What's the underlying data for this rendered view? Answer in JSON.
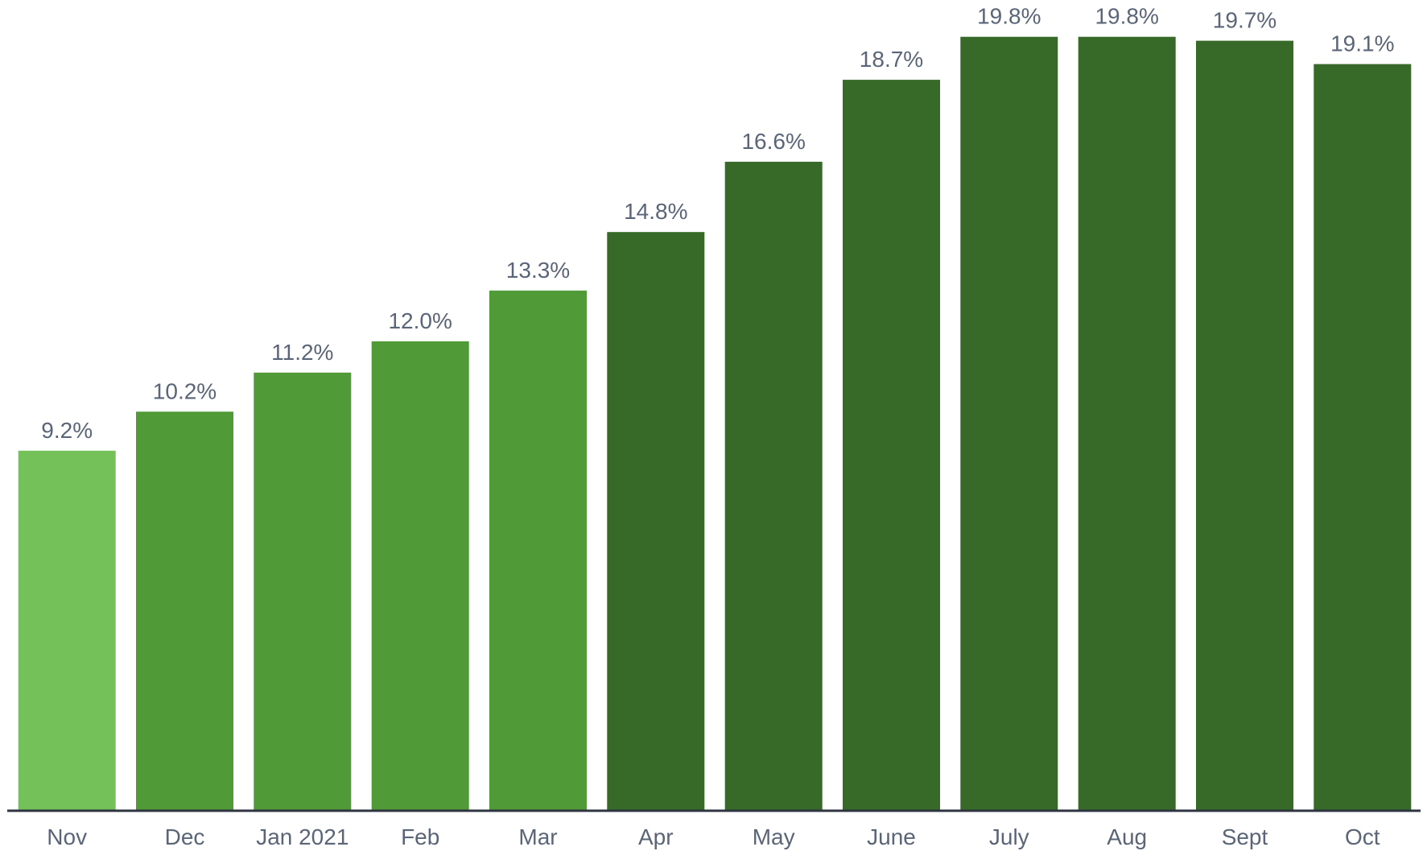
{
  "chart_data": {
    "type": "bar",
    "title": "",
    "xlabel": "",
    "ylabel": "",
    "categories": [
      "Nov",
      "Dec",
      "Jan 2021",
      "Feb",
      "Mar",
      "Apr",
      "May",
      "June",
      "July",
      "Aug",
      "Sept",
      "Oct"
    ],
    "values": [
      9.2,
      10.2,
      11.2,
      12.0,
      13.3,
      14.8,
      16.6,
      18.7,
      19.8,
      19.8,
      19.7,
      19.1
    ],
    "value_labels": [
      "9.2%",
      "10.2%",
      "11.2%",
      "12.0%",
      "13.3%",
      "14.8%",
      "16.6%",
      "18.7%",
      "19.8%",
      "19.8%",
      "19.7%",
      "19.1%"
    ],
    "bar_colors": [
      "#74c15a",
      "#519a38",
      "#519a38",
      "#519a38",
      "#519a38",
      "#376a28",
      "#376a28",
      "#376a28",
      "#376a28",
      "#376a28",
      "#376a28",
      "#376a28"
    ],
    "ylim": [
      0,
      20
    ],
    "grid": false,
    "legend": "none",
    "colors": {
      "axis": "#2f3540",
      "text": "#5a6577"
    }
  }
}
